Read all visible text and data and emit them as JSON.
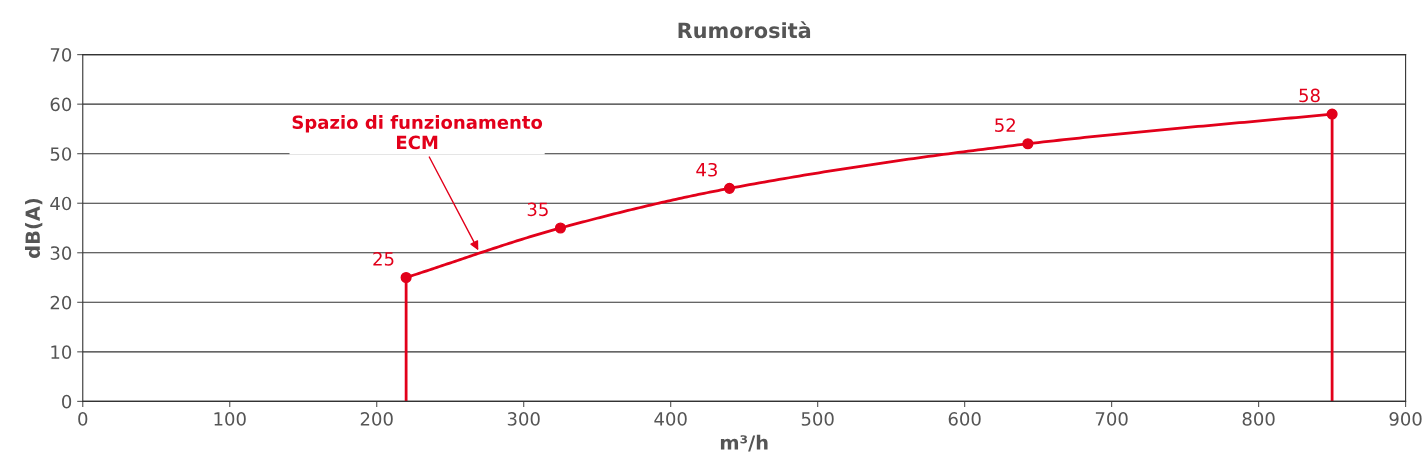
{
  "chart_data": {
    "type": "line",
    "title": "Rumorosità",
    "xlabel": "m³/h",
    "ylabel": "dB(A)",
    "x": [
      220,
      325,
      440,
      643,
      850
    ],
    "series": [
      {
        "color": "#e2001a",
        "values": [
          25,
          35,
          43,
          52,
          58
        ]
      }
    ],
    "xlim": [
      0,
      900
    ],
    "xticks": [
      0,
      100,
      200,
      300,
      400,
      500,
      600,
      700,
      800,
      900
    ],
    "ylim": [
      0,
      70
    ],
    "yticks": [
      0,
      10,
      20,
      30,
      40,
      50,
      60,
      70
    ],
    "grid": "y",
    "marker": "circle",
    "line_style": "solid",
    "data_labels": true,
    "ref_lines": [
      {
        "axis": "x",
        "value": 220,
        "color": "#e2001a"
      },
      {
        "axis": "x",
        "value": 850,
        "color": "#e2001a"
      }
    ],
    "annotations": [
      {
        "text": "Spazio di funzionamento\nECM",
        "x": 270,
        "y": 30
      }
    ]
  }
}
